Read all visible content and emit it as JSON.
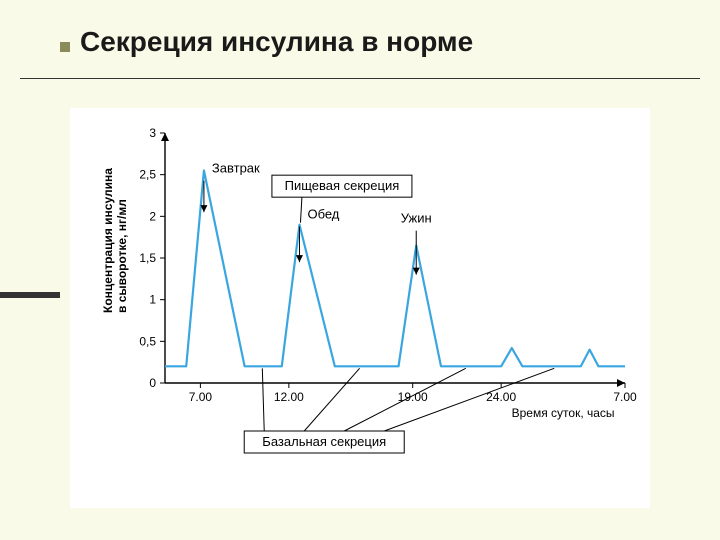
{
  "slide": {
    "title": "Секреция  инсулина в норме",
    "bullet_color": "#8a8a5a",
    "background": "#fafae8"
  },
  "chart": {
    "type": "line",
    "background": "#ffffff",
    "line_color": "#3aa6e0",
    "line_width": 2.2,
    "axis_color": "#000000",
    "grid_color": "#000000",
    "ylabel": "Концентрация инсулина",
    "ylabel2": "в сыворотке, нг/мл",
    "ylabel_fontsize": 12,
    "ylim": [
      0,
      3
    ],
    "yticks": [
      0,
      0.5,
      1,
      1.5,
      2,
      2.5,
      3
    ],
    "ytick_labels": [
      "0",
      "0,5",
      "1",
      "1,5",
      "2",
      "2,5",
      "3"
    ],
    "xlabel": "Время суток, часы",
    "xlim": [
      5,
      31
    ],
    "xticks": [
      7,
      12,
      19,
      24,
      31
    ],
    "xtick_labels": [
      "7.00",
      "12.00",
      "19.00",
      "24.00",
      "7.00"
    ],
    "series": [
      {
        "t": 5.0,
        "y": 0.2
      },
      {
        "t": 6.2,
        "y": 0.2
      },
      {
        "t": 7.2,
        "y": 2.55
      },
      {
        "t": 9.5,
        "y": 0.2
      },
      {
        "t": 11.6,
        "y": 0.2
      },
      {
        "t": 12.6,
        "y": 1.9
      },
      {
        "t": 14.6,
        "y": 0.2
      },
      {
        "t": 18.2,
        "y": 0.2
      },
      {
        "t": 19.2,
        "y": 1.65
      },
      {
        "t": 20.6,
        "y": 0.2
      },
      {
        "t": 24.0,
        "y": 0.2
      },
      {
        "t": 24.6,
        "y": 0.42
      },
      {
        "t": 25.2,
        "y": 0.2
      },
      {
        "t": 28.5,
        "y": 0.2
      },
      {
        "t": 29.0,
        "y": 0.4
      },
      {
        "t": 29.5,
        "y": 0.2
      },
      {
        "t": 31.0,
        "y": 0.2
      }
    ],
    "meal_labels": {
      "breakfast": "Завтрак",
      "lunch": "Обед",
      "dinner": "Ужин"
    },
    "callout_top": "Пищевая секреция",
    "callout_bottom": "Базальная секреция",
    "meal_positions": {
      "breakfast_t": 7.2,
      "lunch_t": 12.6,
      "dinner_t": 19.2
    },
    "basal_leader_t": [
      10.5,
      16.0,
      22.0,
      27.0
    ]
  }
}
